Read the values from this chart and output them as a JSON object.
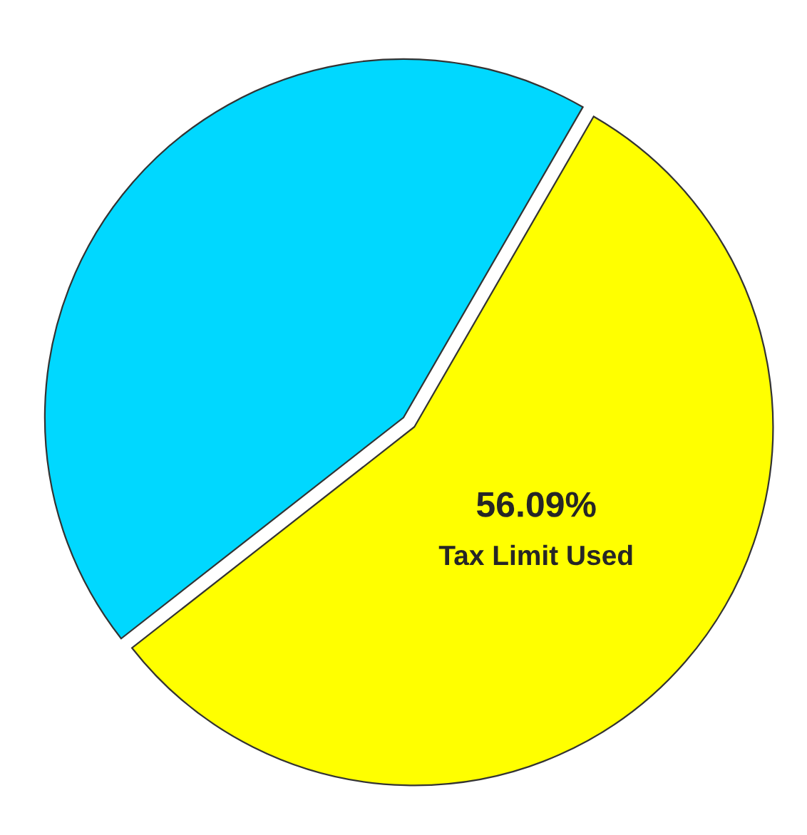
{
  "chart_data": {
    "type": "pie",
    "categories": [
      "Tax Limit Used",
      null
    ],
    "values": [
      56.09,
      43.91
    ],
    "value_labels": [
      "56.09%",
      null
    ],
    "colors": [
      "#ffff00",
      "#00d8ff"
    ],
    "legend": false
  }
}
